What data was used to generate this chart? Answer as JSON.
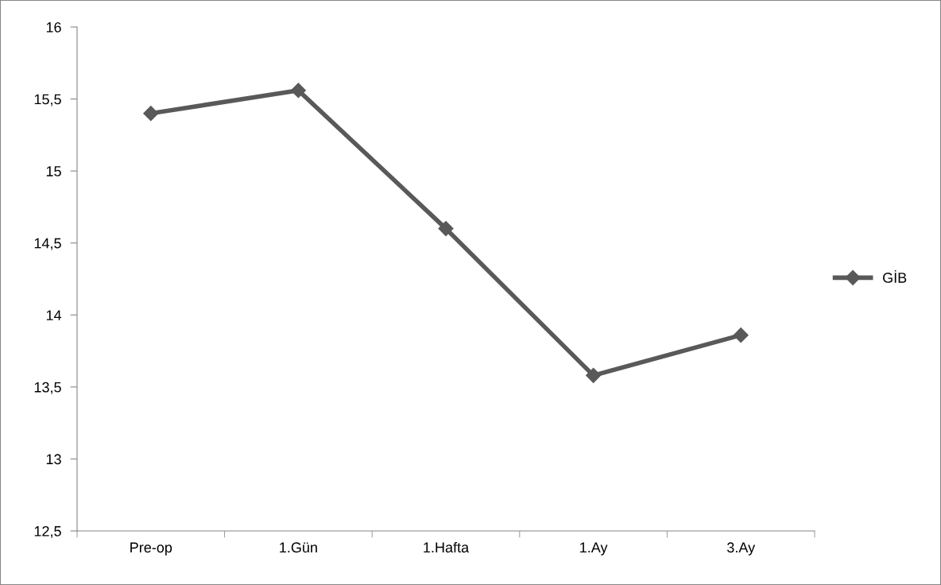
{
  "chart_data": {
    "type": "line",
    "categories": [
      "Pre-op",
      "1.Gün",
      "1.Hafta",
      "1.Ay",
      "3.Ay"
    ],
    "series": [
      {
        "name": "GİB",
        "color": "#595959",
        "values": [
          15.4,
          15.56,
          14.6,
          13.58,
          13.86
        ]
      }
    ],
    "ylim": [
      12.5,
      16
    ],
    "yticks": [
      {
        "value": 12.5,
        "label": "12,5"
      },
      13,
      {
        "value": 13.5,
        "label": "13,5"
      },
      14,
      {
        "value": 14.5,
        "label": "14,5"
      },
      15,
      {
        "value": 15.5,
        "label": "15,5"
      },
      16
    ],
    "grid": false,
    "legend": "right",
    "marker": "diamond",
    "line_style": "solid"
  }
}
